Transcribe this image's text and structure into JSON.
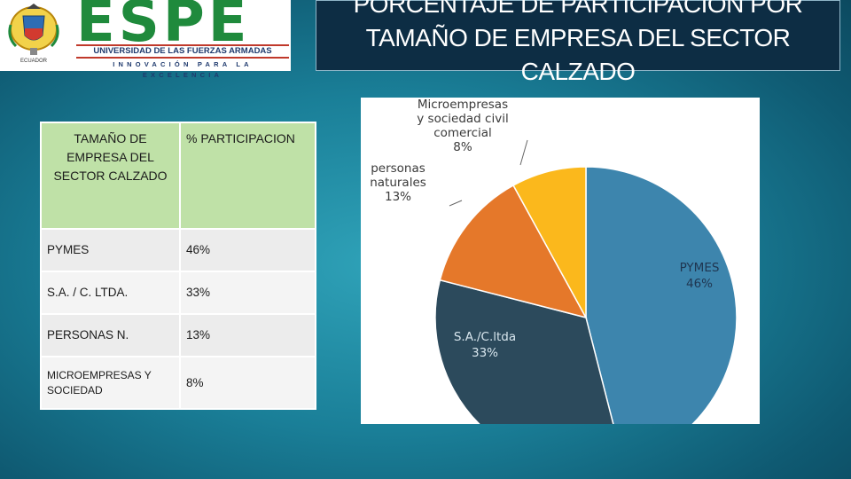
{
  "logo": {
    "wordmark": "ESPE",
    "university": "UNIVERSIDAD DE LAS FUERZAS ARMADAS",
    "tagline": "INNOVACIÓN PARA LA EXCELENCIA",
    "seal_caption": "ECUADOR"
  },
  "title": {
    "lines": [
      "PORCENTAJE DE PARTICIPACIÓN POR",
      "TAMAÑO DE EMPRESA DEL SECTOR",
      "CALZADO"
    ]
  },
  "table": {
    "headers": [
      "TAMAÑO DE EMPRESA DEL SECTOR CALZADO",
      "% PARTICIPACION"
    ],
    "rows": [
      {
        "label": "PYMES",
        "value": "46%"
      },
      {
        "label": "S.A. / C. LTDA.",
        "value": "33%"
      },
      {
        "label": "PERSONAS N.",
        "value": "13%"
      },
      {
        "label": "MICROEMPRESAS Y SOCIEDAD",
        "value": "8%"
      }
    ]
  },
  "chart_data": {
    "type": "pie",
    "slices": [
      {
        "label": "PYMES",
        "value": 46,
        "display": "46%",
        "color": "#3d85ad"
      },
      {
        "label": "S.A./C.ltda",
        "value": 33,
        "display": "33%",
        "color": "#2c4a5c"
      },
      {
        "label": "personas naturales",
        "value": 13,
        "display": "13%",
        "color": "#e5782a"
      },
      {
        "label": "Microempresas y sociedad civil comercial",
        "value": 8,
        "display": "8%",
        "color": "#fbb81c"
      }
    ],
    "legend": "none"
  }
}
